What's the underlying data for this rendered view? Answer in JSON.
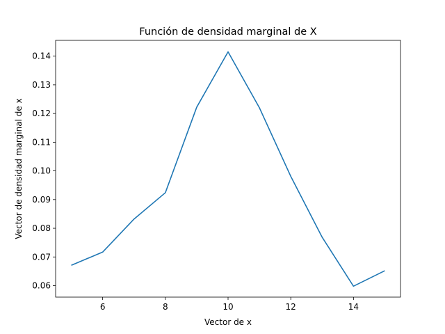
{
  "chart_data": {
    "type": "line",
    "title": "Función de densidad marginal de X",
    "xlabel": "Vector de x",
    "ylabel": "Vector de densidad marginal de x",
    "xlim": [
      4.5,
      15.5
    ],
    "ylim": [
      0.056,
      0.1455
    ],
    "xticks": [
      6,
      8,
      10,
      12,
      14
    ],
    "yticks": [
      0.06,
      0.07,
      0.08,
      0.09,
      0.1,
      0.11,
      0.12,
      0.13,
      0.14
    ],
    "ytick_labels": [
      "0.06",
      "0.07",
      "0.08",
      "0.09",
      "0.10",
      "0.11",
      "0.12",
      "0.13",
      "0.14"
    ],
    "grid": false,
    "series": [
      {
        "color": "#1f77b4",
        "x": [
          5,
          6,
          7,
          8,
          9,
          10,
          11,
          12,
          13,
          14,
          15
        ],
        "y": [
          0.0671,
          0.0717,
          0.0832,
          0.0924,
          0.1222,
          0.1415,
          0.122,
          0.0981,
          0.0769,
          0.0598,
          0.0652
        ]
      }
    ]
  }
}
